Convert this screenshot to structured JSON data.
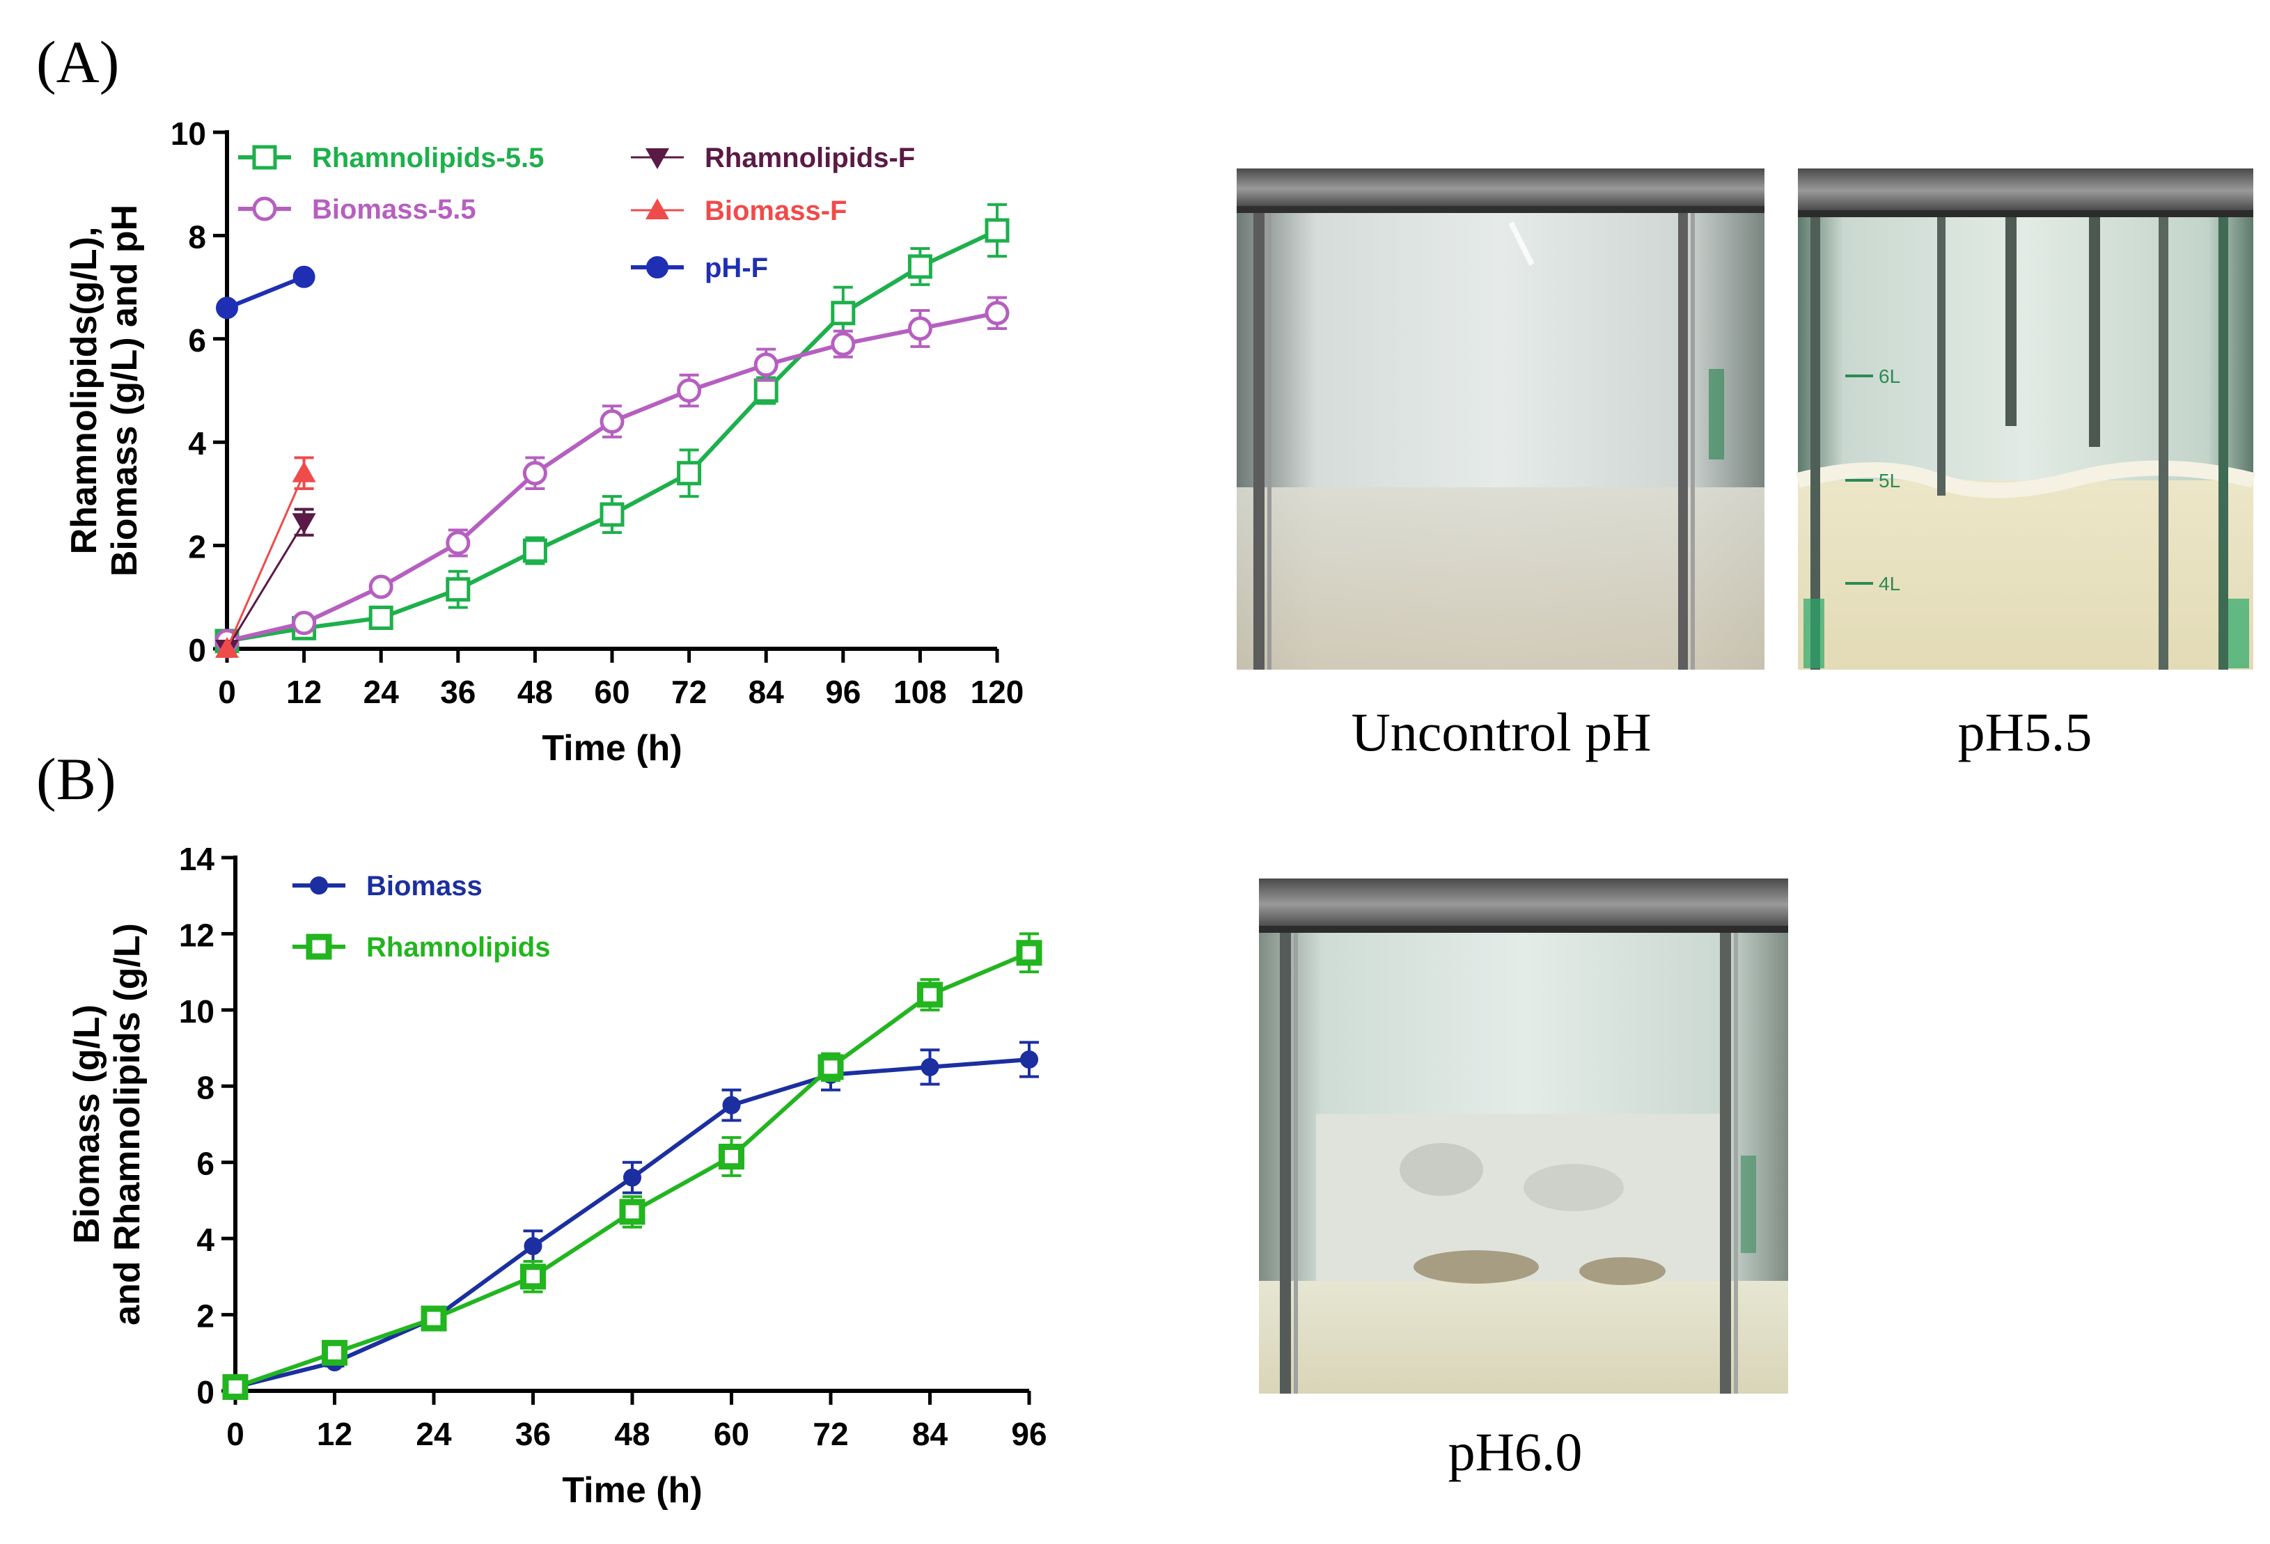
{
  "panels": {
    "a_label": "(A)",
    "b_label": "(B)"
  },
  "photos": {
    "uncontrolled_caption": "Uncontrol pH",
    "ph55_caption": "pH5.5",
    "ph60_caption": "pH6.0",
    "vessel_marks": [
      "6L",
      "5L",
      "4L"
    ]
  },
  "chart_data": [
    {
      "type": "line",
      "panel": "(A)",
      "xlabel": "Time (h)",
      "ylabel_lines": [
        "Rhamnolipids(g/L),",
        "Biomass (g/L) and pH"
      ],
      "xlim": [
        0,
        120
      ],
      "ylim": [
        0,
        10
      ],
      "xticks": [
        0,
        12,
        24,
        36,
        48,
        60,
        72,
        84,
        96,
        108,
        120
      ],
      "yticks": [
        0,
        2,
        4,
        6,
        8,
        10
      ],
      "grid": false,
      "legend_position": "top-left",
      "series": [
        {
          "name": "Rhamnolipids-5.5",
          "color": "#1db04b",
          "marker": "square-open",
          "x": [
            0,
            12,
            24,
            36,
            48,
            60,
            72,
            84,
            96,
            108,
            120
          ],
          "y": [
            0.15,
            0.4,
            0.6,
            1.15,
            1.9,
            2.6,
            3.4,
            5.0,
            6.5,
            7.4,
            8.1
          ],
          "err": [
            0.05,
            0.1,
            0.1,
            0.35,
            0.25,
            0.35,
            0.45,
            0.25,
            0.5,
            0.35,
            0.5
          ]
        },
        {
          "name": "Biomass-5.5",
          "color": "#b65fc0",
          "marker": "circle-open",
          "x": [
            0,
            12,
            24,
            36,
            48,
            60,
            72,
            84,
            96,
            108,
            120
          ],
          "y": [
            0.15,
            0.5,
            1.2,
            2.05,
            3.4,
            4.4,
            5.0,
            5.5,
            5.9,
            6.2,
            6.5
          ],
          "err": [
            0.05,
            0.1,
            0.1,
            0.25,
            0.3,
            0.3,
            0.3,
            0.3,
            0.25,
            0.35,
            0.3
          ]
        },
        {
          "name": "Rhamnolipids-F",
          "color": "#5a1a45",
          "marker": "triangle-down",
          "x": [
            0,
            12
          ],
          "y": [
            0.0,
            2.45
          ],
          "err": [
            0.0,
            0.25
          ]
        },
        {
          "name": "Biomass-F",
          "color": "#ef4b4b",
          "marker": "triangle-up",
          "x": [
            0,
            12
          ],
          "y": [
            0.0,
            3.4
          ],
          "err": [
            0.0,
            0.3
          ]
        },
        {
          "name": "pH-F",
          "color": "#1f2fb4",
          "marker": "circle-filled",
          "x": [
            0,
            12
          ],
          "y": [
            6.6,
            7.2
          ],
          "err": [
            0,
            0
          ]
        }
      ]
    },
    {
      "type": "line",
      "panel": "(B)",
      "xlabel": "Time (h)",
      "ylabel_lines": [
        "Biomass (g/L)",
        "and Rhamnolipids (g/L)"
      ],
      "xlim": [
        0,
        96
      ],
      "ylim": [
        0,
        14
      ],
      "xticks": [
        0,
        12,
        24,
        36,
        48,
        60,
        72,
        84,
        96
      ],
      "yticks": [
        0,
        2,
        4,
        6,
        8,
        10,
        12,
        14
      ],
      "grid": false,
      "legend_position": "top-left",
      "series": [
        {
          "name": "Biomass",
          "color": "#1b2fa0",
          "marker": "circle-filled-small",
          "x": [
            0,
            12,
            24,
            36,
            48,
            60,
            72,
            84,
            96
          ],
          "y": [
            0.1,
            0.75,
            1.9,
            3.8,
            5.6,
            7.5,
            8.3,
            8.5,
            8.7
          ],
          "err": [
            0.05,
            0.1,
            0.15,
            0.4,
            0.4,
            0.4,
            0.4,
            0.45,
            0.45
          ]
        },
        {
          "name": "Rhamnolipids",
          "color": "#22b51f",
          "marker": "square-open-thick",
          "x": [
            0,
            12,
            24,
            36,
            48,
            60,
            72,
            84,
            96
          ],
          "y": [
            0.1,
            1.0,
            1.9,
            3.0,
            4.7,
            6.15,
            8.5,
            10.4,
            11.5
          ],
          "err": [
            0.05,
            0.1,
            0.1,
            0.4,
            0.4,
            0.5,
            0.35,
            0.4,
            0.5
          ]
        }
      ]
    }
  ]
}
